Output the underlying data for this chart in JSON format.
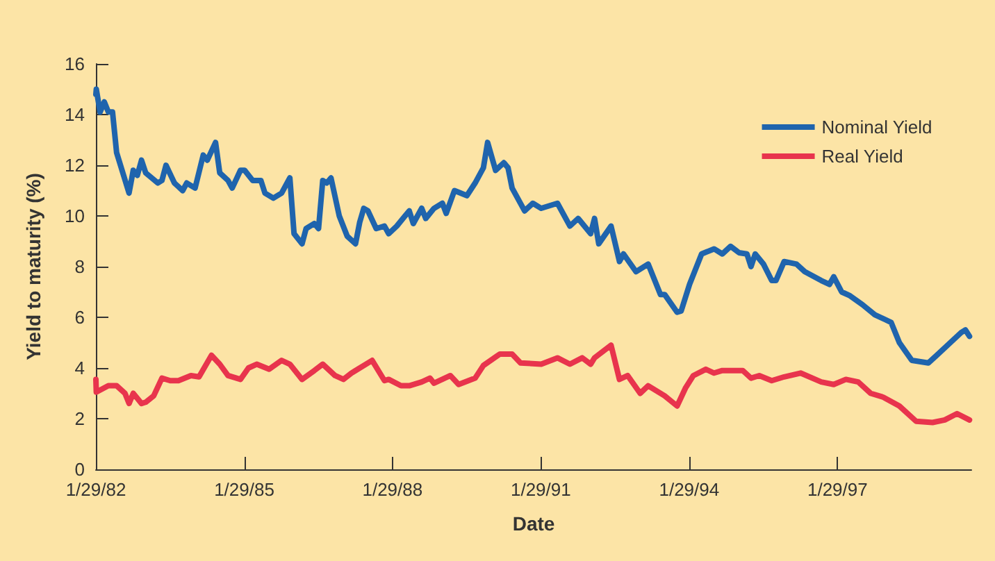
{
  "chart_data": {
    "type": "line",
    "xlabel": "Date",
    "ylabel": "Yield to maturity (%)",
    "xlim": [
      "1982-01-29",
      "1999-10-15"
    ],
    "xticks": [
      {
        "value": "1982-01-29",
        "label": "1/29/82"
      },
      {
        "value": "1985-01-29",
        "label": "1/29/85"
      },
      {
        "value": "1988-01-29",
        "label": "1/29/88"
      },
      {
        "value": "1991-01-29",
        "label": "1/29/91"
      },
      {
        "value": "1994-01-29",
        "label": "1/29/94"
      },
      {
        "value": "1997-01-29",
        "label": "1/29/97"
      }
    ],
    "ylim": [
      0,
      16
    ],
    "yticks": [
      0,
      2,
      4,
      6,
      8,
      10,
      12,
      14,
      16
    ],
    "grid": false,
    "legend": "top right",
    "marker": "none",
    "line_style": "solid",
    "series": [
      {
        "name": "Nominal Yield",
        "color": "#1f64ad",
        "x": [
          "1982-01-29",
          "1982-02",
          "1982-03",
          "1982-04",
          "1982-05",
          "1982-06",
          "1982-07",
          "1982-10",
          "1982-11",
          "1982-12",
          "1983-01",
          "1983-02",
          "1983-05",
          "1983-06",
          "1983-07",
          "1983-09",
          "1983-11",
          "1983-12",
          "1984-02",
          "1984-04",
          "1984-05",
          "1984-07",
          "1984-08",
          "1984-10",
          "1984-11",
          "1985-01",
          "1985-02",
          "1985-04",
          "1985-06",
          "1985-07",
          "1985-09",
          "1985-11",
          "1986-01",
          "1986-02",
          "1986-04",
          "1986-05",
          "1986-07",
          "1986-08",
          "1986-09",
          "1986-10",
          "1986-11",
          "1987-01",
          "1987-03",
          "1987-05",
          "1987-06",
          "1987-07",
          "1987-08",
          "1987-10",
          "1987-12",
          "1988-01",
          "1988-03",
          "1988-05",
          "1988-06",
          "1988-07",
          "1988-09",
          "1988-10",
          "1988-12",
          "1989-02",
          "1989-03",
          "1989-05",
          "1989-08",
          "1989-10",
          "1989-12",
          "1990-01",
          "1990-03",
          "1990-05",
          "1990-06",
          "1990-07",
          "1990-10",
          "1990-12",
          "1991-02",
          "1991-06",
          "1991-09",
          "1991-11",
          "1992-02",
          "1992-03",
          "1992-04",
          "1992-07",
          "1992-09",
          "1992-10",
          "1993-01",
          "1993-04",
          "1993-07",
          "1993-08",
          "1993-11",
          "1993-12",
          "1994-02",
          "1994-05",
          "1994-08",
          "1994-10",
          "1994-12",
          "1995-02",
          "1995-04",
          "1995-05",
          "1995-06",
          "1995-08",
          "1995-10",
          "1995-11",
          "1996-01",
          "1996-04",
          "1996-06",
          "1996-10",
          "1996-12",
          "1997-01",
          "1997-03",
          "1997-05",
          "1997-08",
          "1997-11",
          "1998-03",
          "1998-05",
          "1998-08",
          "1998-12",
          "1999-02",
          "1999-08",
          "1999-09",
          "1999-10"
        ],
        "values": [
          14.8,
          15.0,
          14.1,
          14.5,
          14.1,
          14.1,
          12.5,
          10.9,
          11.8,
          11.6,
          12.2,
          11.7,
          11.3,
          11.4,
          12.0,
          11.3,
          11.0,
          11.3,
          11.1,
          12.4,
          12.2,
          12.9,
          11.7,
          11.4,
          11.1,
          11.8,
          11.8,
          11.4,
          11.4,
          10.9,
          10.7,
          10.9,
          11.5,
          9.3,
          8.9,
          9.5,
          9.7,
          9.5,
          11.4,
          11.3,
          11.5,
          10.0,
          9.2,
          8.9,
          9.75,
          10.3,
          10.2,
          9.5,
          9.6,
          9.3,
          9.6,
          10.0,
          10.2,
          9.7,
          10.3,
          9.9,
          10.3,
          10.5,
          10.1,
          11.0,
          10.8,
          11.3,
          11.9,
          12.9,
          11.8,
          12.1,
          11.9,
          11.1,
          10.2,
          10.5,
          10.3,
          10.5,
          9.6,
          9.9,
          9.3,
          9.9,
          8.9,
          9.6,
          8.2,
          8.5,
          7.8,
          8.1,
          6.9,
          6.9,
          6.2,
          6.25,
          7.3,
          8.5,
          8.7,
          8.5,
          8.8,
          8.55,
          8.5,
          8.0,
          8.5,
          8.1,
          7.45,
          7.45,
          8.2,
          8.1,
          7.8,
          7.45,
          7.3,
          7.6,
          7.0,
          6.85,
          6.5,
          6.1,
          5.8,
          5.0,
          4.3,
          4.2,
          4.5,
          5.4,
          5.5,
          5.25
        ]
      },
      {
        "name": "Real Yield",
        "color": "#e8344d",
        "x": [
          "1982-01-29",
          "1982-02",
          "1982-05",
          "1982-07",
          "1982-09",
          "1982-10",
          "1982-11",
          "1983-01",
          "1983-02",
          "1983-04",
          "1983-06",
          "1983-08",
          "1983-10",
          "1984-01",
          "1984-03",
          "1984-06",
          "1984-08",
          "1984-10",
          "1985-01",
          "1985-03",
          "1985-05",
          "1985-08",
          "1985-11",
          "1986-01",
          "1986-04",
          "1986-07",
          "1986-09",
          "1986-12",
          "1987-02",
          "1987-04",
          "1987-09",
          "1987-12",
          "1988-01",
          "1988-04",
          "1988-06",
          "1988-09",
          "1988-11",
          "1988-12",
          "1989-04",
          "1989-06",
          "1989-10",
          "1989-12",
          "1990-04",
          "1990-07",
          "1990-09",
          "1991-02",
          "1991-06",
          "1991-09",
          "1991-12",
          "1992-02",
          "1992-03",
          "1992-07",
          "1992-09",
          "1992-11",
          "1993-02",
          "1993-04",
          "1993-08",
          "1993-11",
          "1994-01",
          "1994-03",
          "1994-06",
          "1994-08",
          "1994-10",
          "1995-03",
          "1995-05",
          "1995-07",
          "1995-10",
          "1996-01",
          "1996-05",
          "1996-10",
          "1997-01",
          "1997-04",
          "1997-07",
          "1997-10",
          "1998-01",
          "1998-05",
          "1998-09",
          "1999-01",
          "1999-04",
          "1999-07",
          "1999-10"
        ],
        "values": [
          3.55,
          3.05,
          3.3,
          3.3,
          3.0,
          2.6,
          3.0,
          2.6,
          2.65,
          2.9,
          3.6,
          3.5,
          3.5,
          3.7,
          3.65,
          4.5,
          4.15,
          3.7,
          3.55,
          4.0,
          4.15,
          3.95,
          4.3,
          4.15,
          3.55,
          3.9,
          4.15,
          3.7,
          3.55,
          3.8,
          4.3,
          3.5,
          3.55,
          3.3,
          3.3,
          3.45,
          3.6,
          3.4,
          3.7,
          3.35,
          3.6,
          4.1,
          4.55,
          4.55,
          4.2,
          4.15,
          4.4,
          4.15,
          4.4,
          4.15,
          4.4,
          4.9,
          3.55,
          3.7,
          3.0,
          3.3,
          2.9,
          2.5,
          3.2,
          3.7,
          3.95,
          3.8,
          3.9,
          3.9,
          3.6,
          3.7,
          3.5,
          3.65,
          3.8,
          3.45,
          3.35,
          3.55,
          3.45,
          3.0,
          2.85,
          2.5,
          1.9,
          1.85,
          1.95,
          2.2,
          1.95
        ]
      }
    ]
  }
}
